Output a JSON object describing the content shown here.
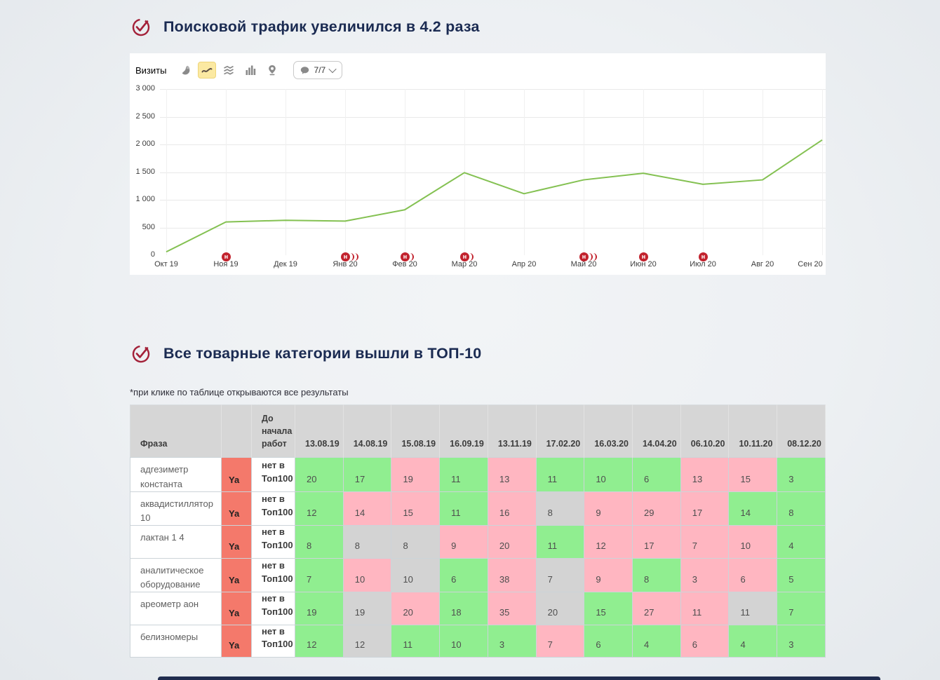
{
  "sections": {
    "traffic": {
      "title": "Поисковой трафик увеличился в 4.2 раза"
    },
    "top10": {
      "title": "Все товарные категории вышли в ТОП-10",
      "note": "*при клике по таблице открываются все результаты"
    }
  },
  "theme": {
    "check_color": "#a32038",
    "heading_color": "#1b2b52",
    "next_section_color": "#202c4e"
  },
  "metrica": {
    "metric_label": "Визиты",
    "toolbar_icons": [
      "pie-chart",
      "line-chart",
      "stacked-area",
      "bar-chart",
      "map-pin"
    ],
    "selected_icon": "line-chart",
    "notes_count": "7/7"
  },
  "chart_data": {
    "type": "line",
    "title": "Визиты",
    "x": [
      "Окт 19",
      "Ноя 19",
      "Дек 19",
      "Янв 20",
      "Фев 20",
      "Мар 20",
      "Апр 20",
      "Май 20",
      "Июн 20",
      "Июл 20",
      "Авг 20",
      "Сен 20"
    ],
    "values": [
      60,
      600,
      630,
      615,
      820,
      1490,
      1110,
      1360,
      1480,
      1280,
      1360,
      2080
    ],
    "ylim": [
      0,
      3000
    ],
    "yticks": [
      0,
      500,
      1000,
      1500,
      2000,
      2500,
      3000
    ],
    "grid": true,
    "line_color": "#84c152",
    "marker_letter": "н",
    "marker_color": "#c2232e",
    "markers": [
      {
        "x": "Ноя 19",
        "arcs": 0
      },
      {
        "x": "Янв 20",
        "arcs": 2
      },
      {
        "x": "Фев 20",
        "arcs": 1
      },
      {
        "x": "Мар 20",
        "arcs": 1
      },
      {
        "x": "Май 20",
        "arcs": 2
      },
      {
        "x": "Июн 20",
        "arcs": 0
      },
      {
        "x": "Июл 20",
        "arcs": 0
      }
    ]
  },
  "table": {
    "phrase_header": "Фраза",
    "before_header": "До начала работ",
    "dates": [
      "13.08.19",
      "14.08.19",
      "15.08.19",
      "16.09.19",
      "13.11.19",
      "17.02.20",
      "16.03.20",
      "14.04.20",
      "06.10.20",
      "10.11.20",
      "08.12.20"
    ],
    "ya_label": "Ya",
    "before_value": "нет в Топ100",
    "colors": {
      "g": "#90ee90",
      "p": "#ffb6c1",
      "y": "#d3d3d3",
      "ya": "#f4796b"
    },
    "rows": [
      {
        "phrase": "адгезиметр константа",
        "cells": [
          [
            20,
            "g"
          ],
          [
            17,
            "g"
          ],
          [
            19,
            "p"
          ],
          [
            11,
            "g"
          ],
          [
            13,
            "p"
          ],
          [
            11,
            "g"
          ],
          [
            10,
            "g"
          ],
          [
            6,
            "g"
          ],
          [
            13,
            "p"
          ],
          [
            15,
            "p"
          ],
          [
            3,
            "g"
          ]
        ]
      },
      {
        "phrase": "аквадистиллятор 10",
        "cells": [
          [
            12,
            "g"
          ],
          [
            14,
            "p"
          ],
          [
            15,
            "p"
          ],
          [
            11,
            "g"
          ],
          [
            16,
            "p"
          ],
          [
            8,
            "y"
          ],
          [
            9,
            "p"
          ],
          [
            29,
            "p"
          ],
          [
            17,
            "p"
          ],
          [
            14,
            "g"
          ],
          [
            8,
            "g"
          ]
        ]
      },
      {
        "phrase": "лактан 1 4",
        "cells": [
          [
            8,
            "g"
          ],
          [
            8,
            "y"
          ],
          [
            8,
            "y"
          ],
          [
            9,
            "p"
          ],
          [
            20,
            "p"
          ],
          [
            11,
            "g"
          ],
          [
            12,
            "p"
          ],
          [
            17,
            "p"
          ],
          [
            7,
            "p"
          ],
          [
            10,
            "p"
          ],
          [
            4,
            "g"
          ]
        ]
      },
      {
        "phrase": "аналитическое оборудование",
        "cells": [
          [
            7,
            "g"
          ],
          [
            10,
            "p"
          ],
          [
            10,
            "y"
          ],
          [
            6,
            "g"
          ],
          [
            38,
            "p"
          ],
          [
            7,
            "y"
          ],
          [
            9,
            "p"
          ],
          [
            8,
            "g"
          ],
          [
            3,
            "p"
          ],
          [
            6,
            "p"
          ],
          [
            5,
            "g"
          ]
        ]
      },
      {
        "phrase": "ареометр аон",
        "cells": [
          [
            19,
            "g"
          ],
          [
            19,
            "y"
          ],
          [
            20,
            "p"
          ],
          [
            18,
            "g"
          ],
          [
            35,
            "p"
          ],
          [
            20,
            "y"
          ],
          [
            15,
            "g"
          ],
          [
            27,
            "p"
          ],
          [
            11,
            "p"
          ],
          [
            11,
            "y"
          ],
          [
            7,
            "g"
          ]
        ]
      },
      {
        "phrase": "белизномеры",
        "cells": [
          [
            12,
            "g"
          ],
          [
            12,
            "y"
          ],
          [
            11,
            "g"
          ],
          [
            10,
            "g"
          ],
          [
            3,
            "g"
          ],
          [
            7,
            "p"
          ],
          [
            6,
            "g"
          ],
          [
            4,
            "g"
          ],
          [
            6,
            "p"
          ],
          [
            4,
            "g"
          ],
          [
            3,
            "g"
          ]
        ]
      }
    ]
  }
}
